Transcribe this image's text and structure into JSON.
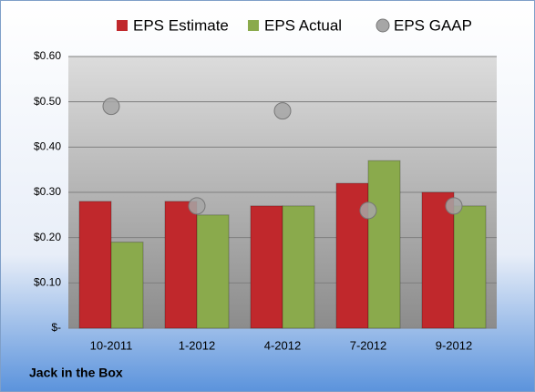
{
  "chart_data": {
    "type": "bar",
    "footer": "Jack in the Box",
    "categories": [
      "10-2011",
      "1-2012",
      "4-2012",
      "7-2012",
      "9-2012"
    ],
    "series": [
      {
        "name": "EPS Estimate",
        "color": "#c0282c",
        "type": "bar",
        "values": [
          0.28,
          0.28,
          0.27,
          0.32,
          0.3
        ]
      },
      {
        "name": "EPS Actual",
        "color": "#8aaa4c",
        "type": "bar",
        "values": [
          0.19,
          0.25,
          0.27,
          0.37,
          0.27
        ]
      },
      {
        "name": "EPS GAAP",
        "color": "#a6a6a6",
        "type": "scatter",
        "values": [
          0.49,
          0.27,
          0.48,
          0.26,
          0.27
        ]
      }
    ],
    "ylim": [
      0,
      0.6
    ],
    "yticks": [
      {
        "value": 0,
        "label": "$-"
      },
      {
        "value": 0.1,
        "label": "$0.10"
      },
      {
        "value": 0.2,
        "label": "$0.20"
      },
      {
        "value": 0.3,
        "label": "$0.30"
      },
      {
        "value": 0.4,
        "label": "$0.40"
      },
      {
        "value": 0.5,
        "label": "$0.50"
      },
      {
        "value": 0.6,
        "label": "$0.60"
      }
    ],
    "grid": true,
    "legend": "top"
  }
}
